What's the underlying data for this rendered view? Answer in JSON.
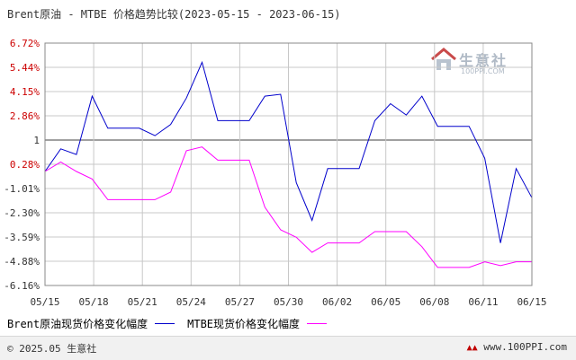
{
  "title": "Brent原油 - MTBE 价格趋势比较(2023-05-15 - 2023-06-15)",
  "watermark": {
    "cn": "生意社",
    "en": "100PPI.COM"
  },
  "footer": {
    "copyright": "© 2025.05 生意社",
    "site": "www.100PPI.com"
  },
  "colors": {
    "brent": "#0000cc",
    "mtbe": "#ff00ff",
    "baseline": "#808080",
    "grid": "#c8c8c8",
    "axis_text_red": "#cc0000",
    "axis_text": "#333333"
  },
  "chart_data": {
    "type": "line",
    "title": "Brent原油 - MTBE 价格趋势比较(2023-05-15 - 2023-06-15)",
    "xlabel": "",
    "ylabel": "",
    "x_ticks": [
      "05/15",
      "05/18",
      "05/21",
      "05/24",
      "05/27",
      "05/30",
      "06/02",
      "06/05",
      "06/08",
      "06/11",
      "06/15"
    ],
    "y_ticks": [
      "6.72%",
      "5.44%",
      "4.15%",
      "2.86%",
      "1",
      "0.28%",
      "-1.01%",
      "-2.30%",
      "-3.59%",
      "-4.88%",
      "-6.16%"
    ],
    "ylim": [
      -6.16,
      6.72
    ],
    "x": [
      "05/15",
      "05/16",
      "05/17",
      "05/18",
      "05/19",
      "05/20",
      "05/21",
      "05/22",
      "05/23",
      "05/24",
      "05/25",
      "05/26",
      "05/27",
      "05/28",
      "05/29",
      "05/30",
      "05/31",
      "06/01",
      "06/02",
      "06/03",
      "06/04",
      "06/05",
      "06/06",
      "06/07",
      "06/08",
      "06/09",
      "06/10",
      "06/11",
      "06/12",
      "06/13",
      "06/14",
      "06/15"
    ],
    "series": [
      {
        "name": "Brent原油现货价格变化幅度",
        "values": [
          -0.1,
          1.1,
          0.8,
          3.9,
          2.2,
          2.2,
          2.2,
          1.8,
          2.4,
          3.8,
          5.7,
          2.6,
          2.6,
          2.6,
          3.9,
          4.0,
          -0.7,
          -2.7,
          0.05,
          0.05,
          0.05,
          2.6,
          3.5,
          2.9,
          3.9,
          2.3,
          2.3,
          2.3,
          0.6,
          -3.9,
          0.05,
          -1.5
        ]
      },
      {
        "name": "MTBE现货价格变化幅度",
        "values": [
          -0.1,
          0.4,
          -0.1,
          -0.5,
          -1.6,
          -1.6,
          -1.6,
          -1.6,
          -1.2,
          1.0,
          1.2,
          0.5,
          0.5,
          0.5,
          -2.0,
          -3.2,
          -3.6,
          -4.4,
          -3.9,
          -3.9,
          -3.9,
          -3.3,
          -3.3,
          -3.3,
          -4.1,
          -5.2,
          -5.2,
          -5.2,
          -4.9,
          -5.1,
          -4.9,
          -4.9
        ]
      }
    ],
    "grid": true,
    "legend": "bottom-left"
  }
}
